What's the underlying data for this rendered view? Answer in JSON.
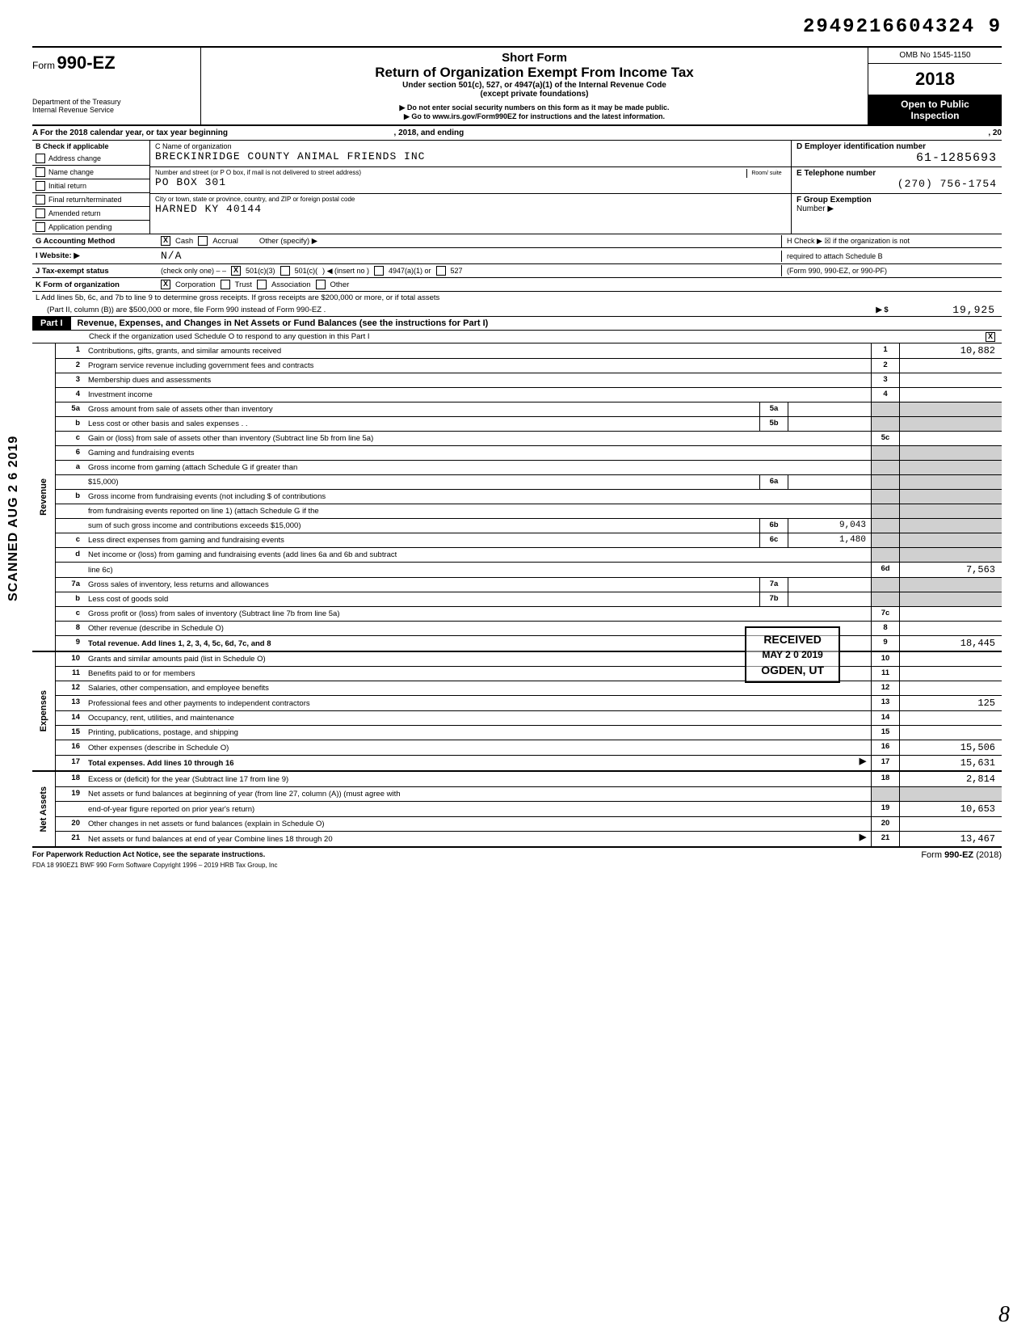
{
  "doc_number": "2949216604324 9",
  "header": {
    "form_label": "Form",
    "form_number": "990-EZ",
    "dept": "Department of the Treasury",
    "irs": "Internal Revenue Service",
    "title_short": "Short Form",
    "title_main": "Return of Organization Exempt From Income Tax",
    "title_sub": "Under section 501(c), 527, or 4947(a)(1) of the Internal Revenue Code",
    "title_except": "(except private foundations)",
    "warn1": "▶ Do not enter social security numbers on this form as it may be made public.",
    "warn2": "▶ Go to www.irs.gov/Form990EZ for instructions and the latest information.",
    "omb": "OMB No 1545-1150",
    "year": "2018",
    "open1": "Open to Public",
    "open2": "Inspection"
  },
  "line_a": {
    "text_a": "A  For the 2018 calendar year, or tax year beginning",
    "text_b": ", 2018, and ending",
    "text_c": ", 20"
  },
  "section_b": {
    "label": "B  Check if applicable",
    "items": [
      "Address change",
      "Name change",
      "Initial return",
      "Final return/terminated",
      "Amended return",
      "Application pending"
    ]
  },
  "section_c": {
    "label": "C  Name of organization",
    "org_name": "BRECKINRIDGE COUNTY ANIMAL FRIENDS INC",
    "street_label": "Number and street (or P O  box, if mail is not delivered to street address)",
    "room_label": "Room/ suite",
    "street": "PO BOX 301",
    "city_label": "City or town, state or province, country, and ZIP or foreign postal code",
    "city": "HARNED KY 40144"
  },
  "section_de": {
    "d_label": "D  Employer identification number",
    "ein": "61-1285693",
    "e_label": "E  Telephone number",
    "phone": "(270) 756-1754",
    "f_label": "F  Group Exemption",
    "f_num": "Number  ▶"
  },
  "row_g": {
    "lbl": "G  Accounting Method",
    "cash": "Cash",
    "accrual": "Accrual",
    "other": "Other (specify) ▶"
  },
  "row_h": {
    "text": "H  Check ▶ ☒ if the organization is not",
    "text2": "required to attach Schedule B",
    "text3": "(Form 990, 990-EZ, or 990-PF)"
  },
  "row_i": {
    "lbl": "I   Website: ▶",
    "val": "N/A"
  },
  "row_j": {
    "lbl": "J   Tax-exempt status",
    "note": "(check only one) – –",
    "o1": "501(c)(3)",
    "o2": "501(c)(",
    "o2b": ")  ◀ (insert no )",
    "o3": "4947(a)(1) or",
    "o4": "527"
  },
  "row_k": {
    "lbl": "K  Form of organization",
    "o1": "Corporation",
    "o2": "Trust",
    "o3": "Association",
    "o4": "Other"
  },
  "row_l": {
    "text1": "L  Add lines 5b, 6c, and 7b to line 9 to determine gross receipts. If gross receipts are $200,000 or more, or if total assets",
    "text2": "(Part II, column (B)) are $500,000 or more, file Form 990 instead of Form 990-EZ    .",
    "arrow": "▶  $",
    "val": "19,925"
  },
  "part1": {
    "badge": "Part I",
    "title": "Revenue, Expenses, and Changes in Net Assets or Fund Balances (see the instructions for Part I)",
    "check_text": "Check if the organization used Schedule O to respond to any question in this Part I"
  },
  "side_labels": {
    "rev": "Revenue",
    "exp": "Expenses",
    "na": "Net Assets"
  },
  "revenue_rows": [
    {
      "n": "1",
      "d": "Contributions, gifts, grants, and similar amounts received",
      "rn": "1",
      "rv": "10,882"
    },
    {
      "n": "2",
      "d": "Program service revenue including government fees and contracts",
      "rn": "2",
      "rv": ""
    },
    {
      "n": "3",
      "d": "Membership dues and assessments",
      "rn": "3",
      "rv": ""
    },
    {
      "n": "4",
      "d": "Investment income",
      "rn": "4",
      "rv": ""
    },
    {
      "n": "5a",
      "d": "Gross amount from sale of assets other than inventory",
      "mn": "5a",
      "mv": "",
      "shade": true
    },
    {
      "n": "b",
      "d": "Less  cost or other basis and sales expenses    .    .",
      "mn": "5b",
      "mv": "",
      "shade": true
    },
    {
      "n": "c",
      "d": "Gain or (loss) from sale of assets other than inventory (Subtract line 5b from line 5a)",
      "rn": "5c",
      "rv": ""
    },
    {
      "n": "6",
      "d": "Gaming and fundraising events",
      "shade": true,
      "noboxes": true
    },
    {
      "n": "a",
      "d": "Gross income from gaming (attach Schedule G if greater than",
      "cont": true,
      "shade": true
    },
    {
      "n": "",
      "d": "$15,000)",
      "mn": "6a",
      "mv": "",
      "shade": true
    },
    {
      "n": "b",
      "d": "Gross income from fundraising events (not including   $                               of contributions",
      "cont": true,
      "shade": true
    },
    {
      "n": "",
      "d": "from fundraising events reported on line 1) (attach Schedule G if the",
      "cont": true,
      "shade": true
    },
    {
      "n": "",
      "d": "sum of such gross income and contributions exceeds $15,000)",
      "mn": "6b",
      "mv": "9,043",
      "shade": true
    },
    {
      "n": "c",
      "d": "Less  direct expenses from gaming and fundraising events",
      "mn": "6c",
      "mv": "1,480",
      "shade": true
    },
    {
      "n": "d",
      "d": "Net income or (loss) from gaming and fundraising events (add lines 6a and 6b and subtract",
      "cont": true
    },
    {
      "n": "",
      "d": "line 6c)",
      "rn": "6d",
      "rv": "7,563"
    },
    {
      "n": "7a",
      "d": "Gross sales of inventory, less returns and allowances",
      "mn": "7a",
      "mv": "",
      "shade": true
    },
    {
      "n": "b",
      "d": "Less  cost of goods sold",
      "mn": "7b",
      "mv": "",
      "shade": true
    },
    {
      "n": "c",
      "d": "Gross profit or (loss) from sales of inventory (Subtract line 7b from line 5a)",
      "rn": "7c",
      "rv": ""
    },
    {
      "n": "8",
      "d": "Other revenue (describe in Schedule O)",
      "rn": "8",
      "rv": ""
    },
    {
      "n": "9",
      "d": "Total revenue. Add lines 1, 2, 3, 4, 5c, 6d, 7c, and 8",
      "rn": "9",
      "rv": "18,445",
      "bold": true
    }
  ],
  "expense_rows": [
    {
      "n": "10",
      "d": "Grants and similar amounts paid (list in Schedule O)",
      "rn": "10",
      "rv": ""
    },
    {
      "n": "11",
      "d": "Benefits paid to or for members",
      "rn": "11",
      "rv": ""
    },
    {
      "n": "12",
      "d": "Salaries, other compensation, and employee benefits",
      "rn": "12",
      "rv": ""
    },
    {
      "n": "13",
      "d": "Professional fees and other payments to independent contractors",
      "rn": "13",
      "rv": "125"
    },
    {
      "n": "14",
      "d": "Occupancy, rent, utilities, and maintenance",
      "rn": "14",
      "rv": ""
    },
    {
      "n": "15",
      "d": "Printing, publications, postage, and shipping",
      "rn": "15",
      "rv": ""
    },
    {
      "n": "16",
      "d": "Other expenses (describe in Schedule O)",
      "rn": "16",
      "rv": "15,506"
    },
    {
      "n": "17",
      "d": "Total expenses. Add lines 10 through 16",
      "rn": "17",
      "rv": "15,631",
      "bold": true,
      "arrow": "▶"
    }
  ],
  "netasset_rows": [
    {
      "n": "18",
      "d": "Excess or (deficit) for the year (Subtract line 17 from line 9)",
      "rn": "18",
      "rv": "2,814"
    },
    {
      "n": "19",
      "d": "Net assets or fund balances at beginning of year (from line 27, column (A)) (must agree with",
      "cont": true
    },
    {
      "n": "",
      "d": "end-of-year figure reported on prior year's return)",
      "rn": "19",
      "rv": "10,653"
    },
    {
      "n": "20",
      "d": "Other changes in net assets or fund balances (explain in Schedule O)",
      "rn": "20",
      "rv": ""
    },
    {
      "n": "21",
      "d": "Net assets or fund balances at end of year  Combine lines 18 through 20",
      "rn": "21",
      "rv": "13,467",
      "arrow": "▶"
    }
  ],
  "footer": {
    "left": "For Paperwork Reduction Act Notice, see the separate instructions.",
    "line2": "FDA       18   990EZ1       BWF 990       Form Software Copyright 1996 – 2019 HRB Tax Group, Inc",
    "right": "Form 990-EZ (2018)"
  },
  "stamps": {
    "scanned": "SCANNED AUG 2 6 2019",
    "received": "RECEIVED",
    "received_date": "MAY 2 0 2019",
    "received_loc": "OGDEN, UT",
    "page": "8"
  },
  "colors": {
    "black": "#000000",
    "shade": "#d0d0d0"
  }
}
